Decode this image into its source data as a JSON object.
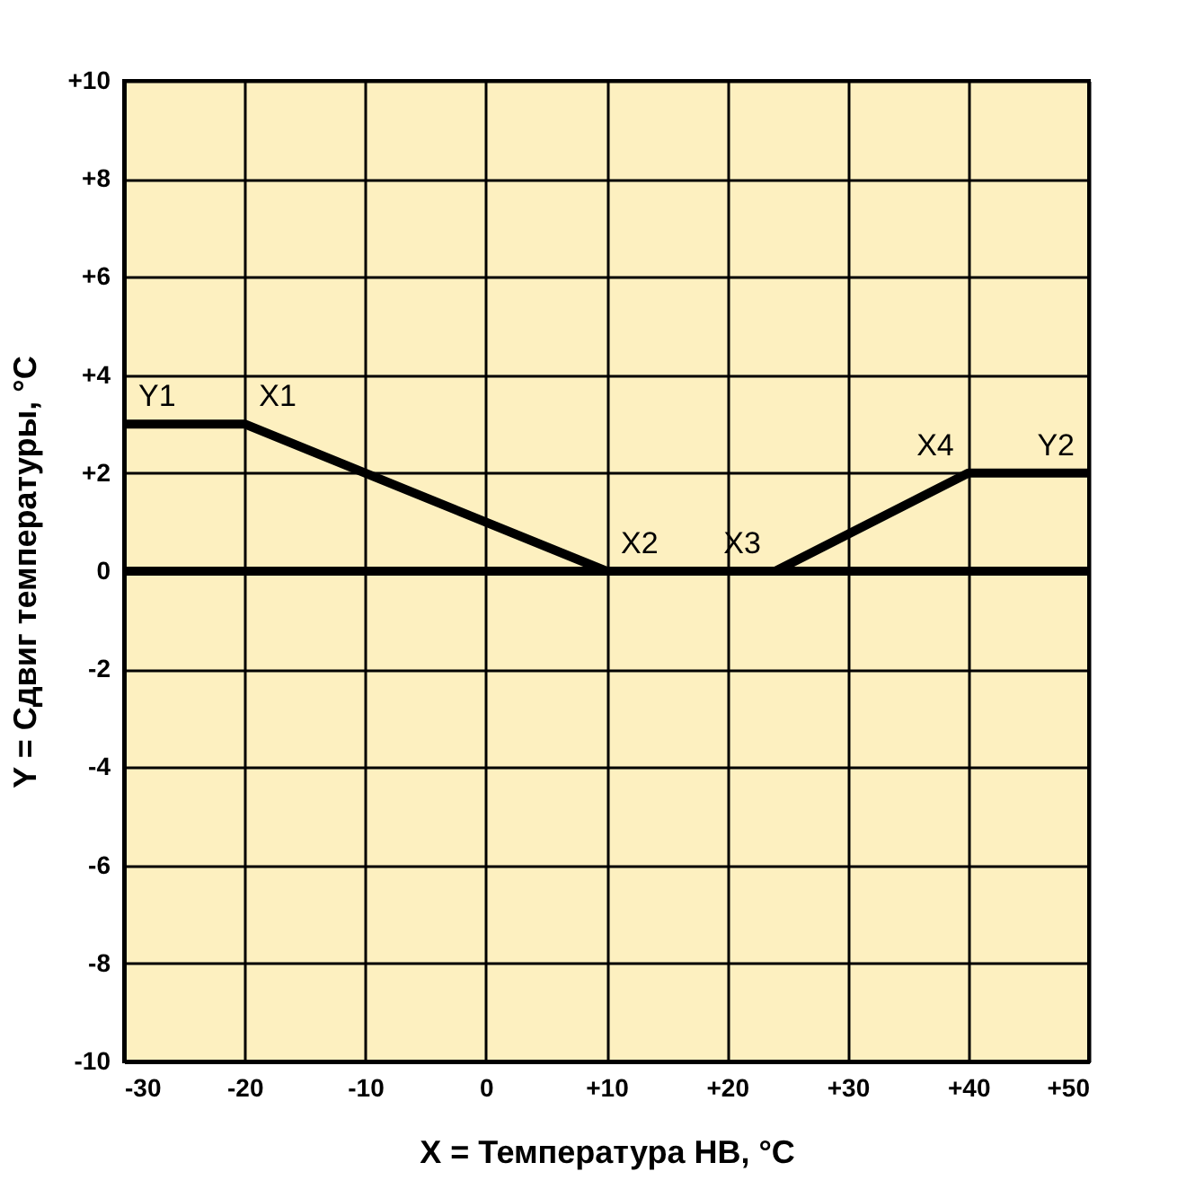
{
  "chart_data": {
    "type": "line",
    "xlabel": "X = Температура НВ, °C",
    "ylabel": "Y = Сдвиг температуры, °C",
    "series": [
      {
        "color": "#000000",
        "x": [
          -30,
          -20,
          10,
          24,
          40,
          50
        ],
        "values": [
          3,
          3,
          0,
          0,
          2,
          2
        ]
      }
    ],
    "xlim": [
      -30,
      50
    ],
    "ylim": [
      -10,
      10
    ],
    "xticks": [
      -30,
      -20,
      -10,
      0,
      {
        "value": 10,
        "label": "+10"
      },
      {
        "value": 20,
        "label": "+20"
      },
      {
        "value": 30,
        "label": "+30"
      },
      {
        "value": 40,
        "label": "+40"
      },
      {
        "value": 50,
        "label": "+50"
      }
    ],
    "yticks": [
      -10,
      -8,
      -6,
      -4,
      -2,
      0,
      {
        "value": 2,
        "label": "+2"
      },
      {
        "value": 4,
        "label": "+4"
      },
      {
        "value": 6,
        "label": "+6"
      },
      {
        "value": 8,
        "label": "+8"
      },
      {
        "value": 10,
        "label": "+10"
      }
    ],
    "ref_lines": [
      {
        "axis": "y",
        "value": 0,
        "color": "#000000"
      }
    ],
    "annotations": [
      {
        "text": "Y1",
        "x": -30,
        "y": 3
      },
      {
        "text": "X1",
        "x": -20,
        "y": 3
      },
      {
        "text": "X2",
        "x": 10,
        "y": 0
      },
      {
        "text": "X3",
        "x": 24,
        "y": 0
      },
      {
        "text": "X4",
        "x": 40,
        "y": 2
      },
      {
        "text": "Y2",
        "x": 50,
        "y": 2
      }
    ],
    "grid": true,
    "line_style": "solid",
    "marker": "none"
  }
}
